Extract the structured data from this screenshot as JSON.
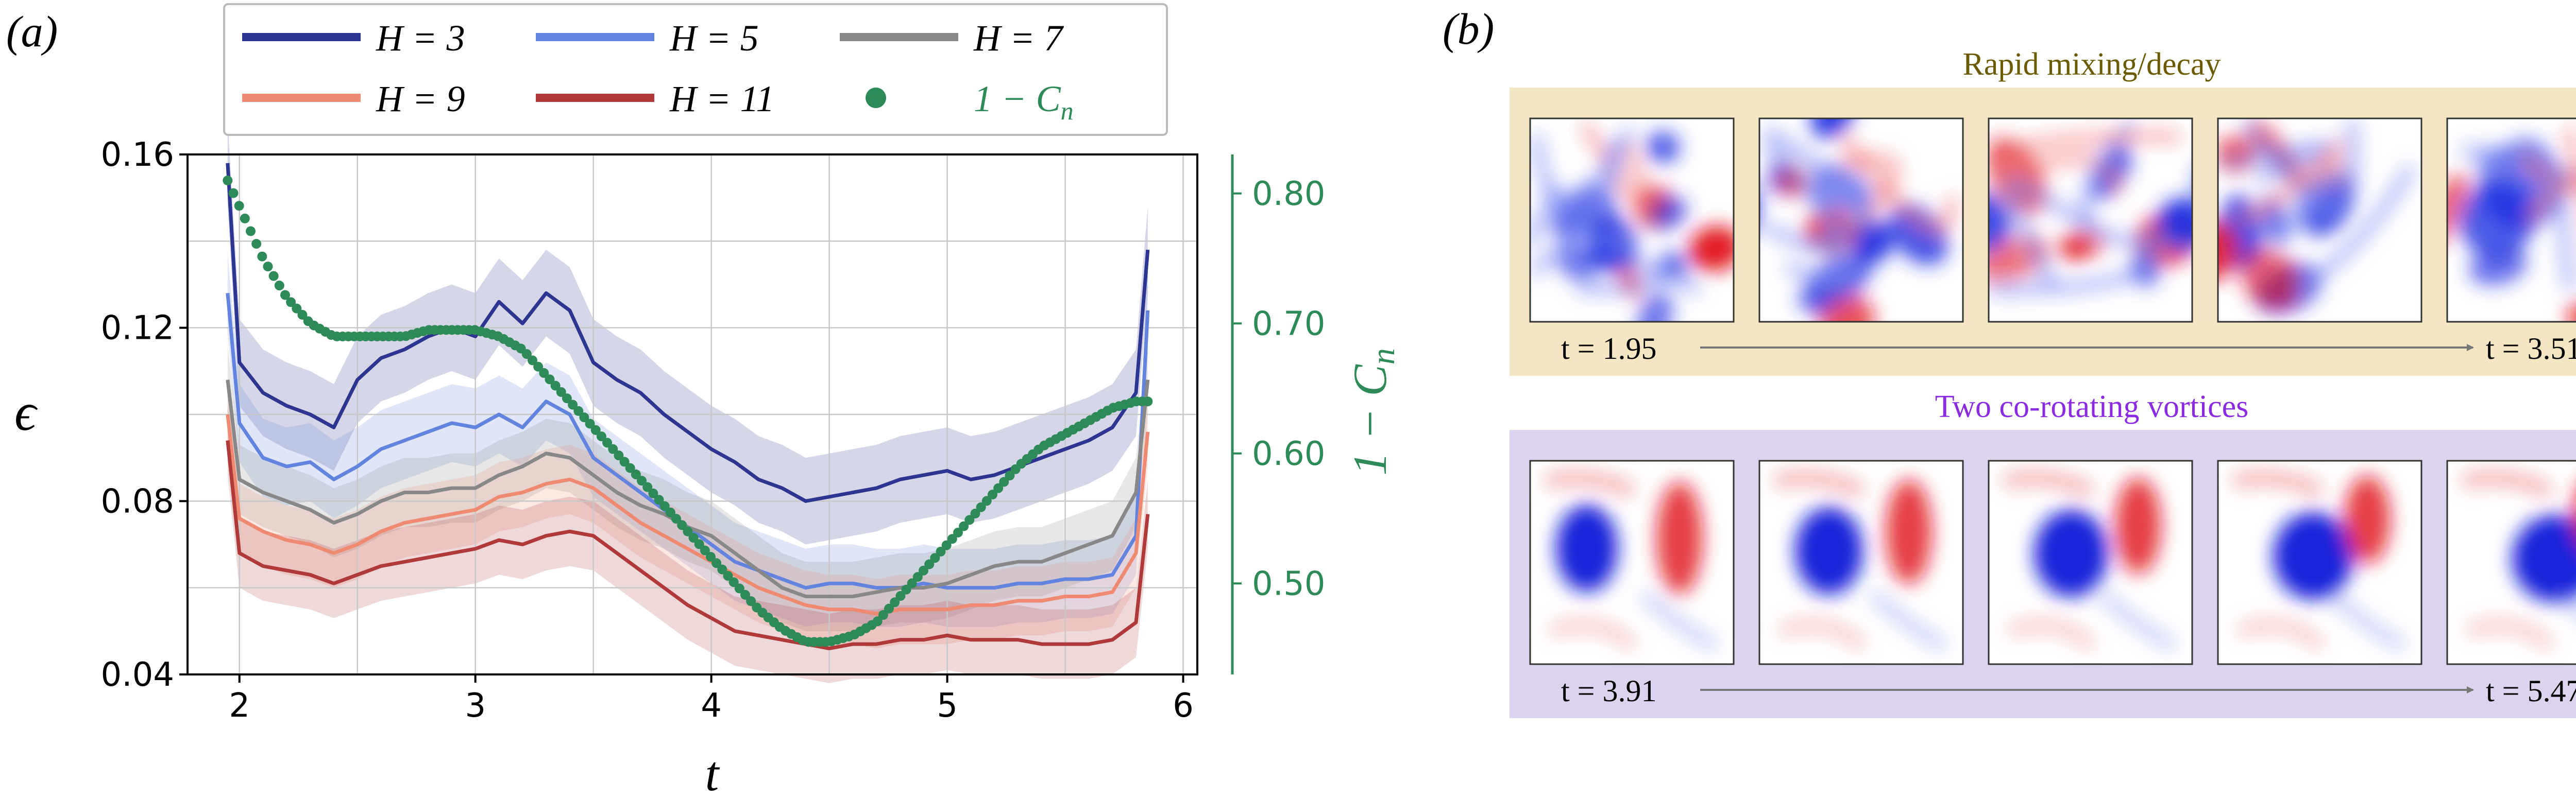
{
  "panel_a": {
    "label": "(a)"
  },
  "panel_b": {
    "label": "(b)",
    "groups": [
      {
        "caption": "Rapid mixing/decay",
        "caption_color": "#6b5a00",
        "bg": "#f5e6c3",
        "t_start": "t = 1.95",
        "t_end": "t = 3.51"
      },
      {
        "caption": "Two co-rotating vortices",
        "caption_color": "#8a2be2",
        "bg": "#dcd3ee",
        "t_start": "t = 3.91",
        "t_end": "t = 5.47"
      }
    ]
  },
  "chart_data": {
    "type": "line",
    "xlabel": "t",
    "ylabel": "ϵ",
    "y2label": "1 − C_n",
    "xlim": [
      1.78,
      6.06
    ],
    "ylim": [
      0.04,
      0.16
    ],
    "y2lim": [
      0.43,
      0.83
    ],
    "xticks": [
      "2",
      "3",
      "4",
      "5",
      "6"
    ],
    "yticks": [
      "0.04",
      "0.08",
      "0.12",
      "0.16"
    ],
    "y2ticks": [
      "0.50",
      "0.60",
      "0.70",
      "0.80"
    ],
    "grid": true,
    "legend_position": "top",
    "x": [
      1.95,
      2.0,
      2.1,
      2.2,
      2.3,
      2.4,
      2.5,
      2.6,
      2.7,
      2.8,
      2.9,
      3.0,
      3.1,
      3.2,
      3.3,
      3.4,
      3.5,
      3.6,
      3.7,
      3.8,
      3.9,
      4.0,
      4.1,
      4.2,
      4.3,
      4.4,
      4.5,
      4.6,
      4.7,
      4.8,
      4.9,
      5.0,
      5.1,
      5.2,
      5.3,
      5.4,
      5.5,
      5.6,
      5.7,
      5.8,
      5.85
    ],
    "series": [
      {
        "name": "H = 3",
        "color": "#2c3590",
        "values": [
          0.158,
          0.112,
          0.105,
          0.102,
          0.1,
          0.097,
          0.108,
          0.113,
          0.115,
          0.118,
          0.12,
          0.118,
          0.126,
          0.121,
          0.128,
          0.124,
          0.112,
          0.108,
          0.105,
          0.1,
          0.096,
          0.092,
          0.089,
          0.085,
          0.083,
          0.08,
          0.081,
          0.082,
          0.083,
          0.085,
          0.086,
          0.087,
          0.085,
          0.086,
          0.088,
          0.09,
          0.092,
          0.094,
          0.097,
          0.105,
          0.138
        ]
      },
      {
        "name": "H = 5",
        "color": "#6384de",
        "values": [
          0.128,
          0.098,
          0.09,
          0.088,
          0.089,
          0.085,
          0.088,
          0.092,
          0.094,
          0.096,
          0.098,
          0.097,
          0.1,
          0.097,
          0.103,
          0.1,
          0.09,
          0.086,
          0.082,
          0.078,
          0.074,
          0.07,
          0.066,
          0.064,
          0.062,
          0.06,
          0.061,
          0.061,
          0.06,
          0.06,
          0.061,
          0.06,
          0.06,
          0.06,
          0.061,
          0.061,
          0.062,
          0.062,
          0.063,
          0.072,
          0.124
        ]
      },
      {
        "name": "H = 7",
        "color": "#888888",
        "values": [
          0.108,
          0.085,
          0.082,
          0.08,
          0.078,
          0.075,
          0.077,
          0.08,
          0.082,
          0.082,
          0.083,
          0.083,
          0.086,
          0.088,
          0.091,
          0.09,
          0.086,
          0.082,
          0.079,
          0.077,
          0.074,
          0.072,
          0.068,
          0.064,
          0.06,
          0.058,
          0.058,
          0.058,
          0.059,
          0.06,
          0.06,
          0.061,
          0.063,
          0.065,
          0.066,
          0.066,
          0.068,
          0.07,
          0.072,
          0.082,
          0.108
        ]
      },
      {
        "name": "H = 9",
        "color": "#ef8a72",
        "values": [
          0.1,
          0.076,
          0.073,
          0.071,
          0.07,
          0.068,
          0.07,
          0.073,
          0.075,
          0.076,
          0.077,
          0.078,
          0.081,
          0.082,
          0.084,
          0.085,
          0.083,
          0.079,
          0.075,
          0.072,
          0.069,
          0.066,
          0.063,
          0.06,
          0.058,
          0.056,
          0.055,
          0.055,
          0.054,
          0.055,
          0.055,
          0.055,
          0.056,
          0.056,
          0.057,
          0.057,
          0.058,
          0.058,
          0.059,
          0.068,
          0.096
        ]
      },
      {
        "name": "H = 11",
        "color": "#b03a3a",
        "values": [
          0.094,
          0.068,
          0.065,
          0.064,
          0.063,
          0.061,
          0.063,
          0.065,
          0.066,
          0.067,
          0.068,
          0.069,
          0.071,
          0.07,
          0.072,
          0.073,
          0.072,
          0.068,
          0.064,
          0.06,
          0.056,
          0.053,
          0.05,
          0.049,
          0.048,
          0.047,
          0.046,
          0.047,
          0.047,
          0.048,
          0.048,
          0.049,
          0.048,
          0.048,
          0.048,
          0.047,
          0.047,
          0.047,
          0.048,
          0.052,
          0.077
        ]
      },
      {
        "name": "1 − C_n",
        "color": "#2e8b57",
        "axis": "right",
        "marker": "circle",
        "values": [
          0.81,
          0.79,
          0.75,
          0.72,
          0.7,
          0.69,
          0.69,
          0.69,
          0.69,
          0.695,
          0.695,
          0.695,
          0.69,
          0.68,
          0.66,
          0.64,
          0.62,
          0.6,
          0.58,
          0.56,
          0.54,
          0.52,
          0.5,
          0.48,
          0.465,
          0.455,
          0.455,
          0.46,
          0.47,
          0.49,
          0.51,
          0.53,
          0.55,
          0.57,
          0.59,
          0.605,
          0.615,
          0.625,
          0.635,
          0.64,
          0.64
        ]
      }
    ]
  }
}
